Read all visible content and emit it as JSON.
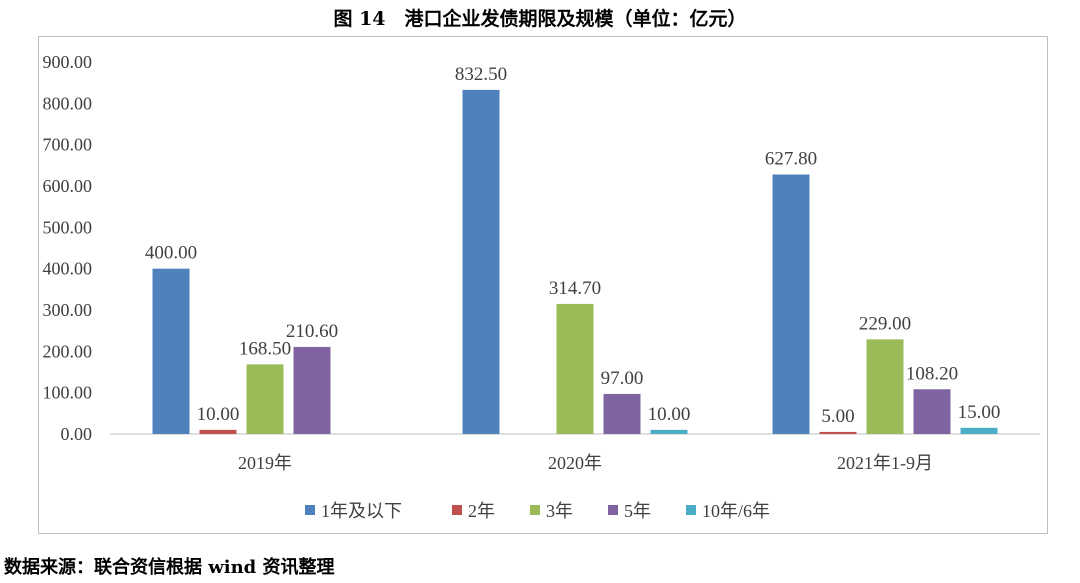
{
  "chart_data": {
    "type": "bar",
    "title": "图 14　港口企业发债期限及规模（单位：亿元）",
    "categories": [
      "2019年",
      "2020年",
      "2021年1-9月"
    ],
    "series": [
      {
        "name": "1年及以下",
        "color": "#4f81bd",
        "values": [
          400.0,
          832.5,
          627.8
        ]
      },
      {
        "name": "2年",
        "color": "#c0504d",
        "values": [
          10.0,
          null,
          5.0
        ]
      },
      {
        "name": "3年",
        "color": "#9bbb59",
        "values": [
          168.5,
          314.7,
          229.0
        ]
      },
      {
        "name": "5年",
        "color": "#8064a2",
        "values": [
          210.6,
          97.0,
          108.2
        ]
      },
      {
        "name": "10年/6年",
        "color": "#4bacc6",
        "values": [
          null,
          10.0,
          15.0
        ]
      }
    ],
    "yticks": [
      "0.00",
      "100.00",
      "200.00",
      "300.00",
      "400.00",
      "500.00",
      "600.00",
      "700.00",
      "800.00",
      "900.00"
    ],
    "ylim": [
      0,
      900
    ],
    "grid": false,
    "legend": "bottom",
    "data_labels": true
  },
  "source": "数据来源：联合资信根据 wind 资讯整理"
}
